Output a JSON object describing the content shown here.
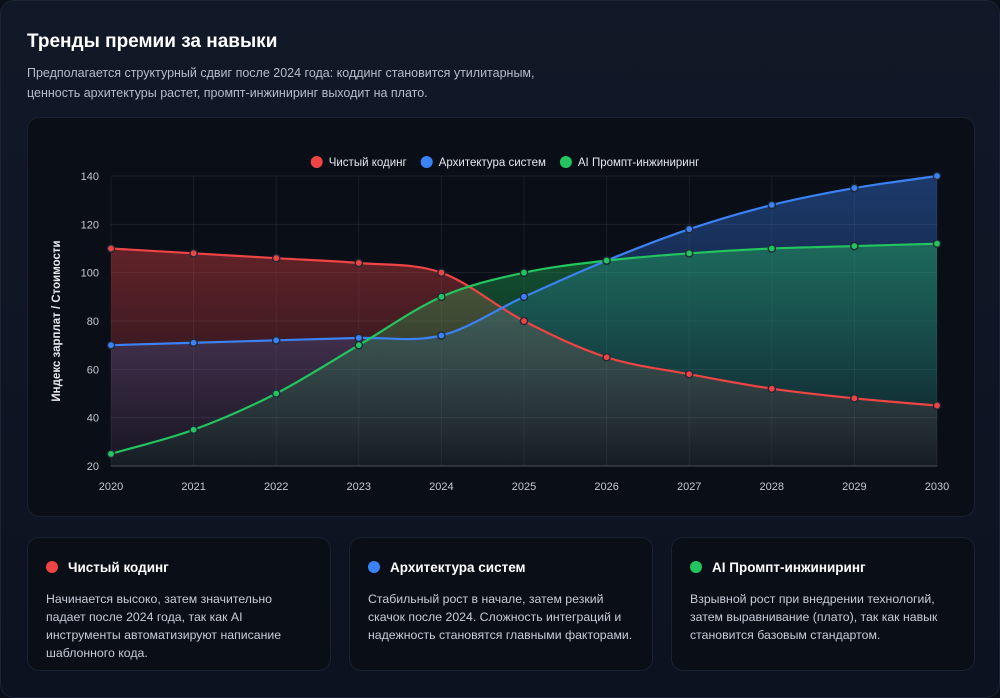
{
  "header": {
    "title": "Тренды премии за навыки",
    "subtitle": "Предполагается структурный сдвиг после 2024 года: коддинг становится утилитарным, ценность архитектуры растет, промпт-инжиниринг выходит на плато."
  },
  "chart_data": {
    "type": "line",
    "title": "",
    "xlabel": "",
    "ylabel": "Индекс зарплат / Стоимости",
    "x": [
      "2020",
      "2021",
      "2022",
      "2023",
      "2024",
      "2025",
      "2026",
      "2027",
      "2028",
      "2029",
      "2030"
    ],
    "ylim": [
      20,
      140
    ],
    "yticks": [
      20,
      40,
      60,
      80,
      100,
      120,
      140
    ],
    "grid": true,
    "legend_position": "top-center",
    "series": [
      {
        "name": "Чистый кодинг",
        "color": "#ef4444",
        "values": [
          110,
          108,
          106,
          104,
          100,
          80,
          65,
          58,
          52,
          48,
          45
        ]
      },
      {
        "name": "Архитектура систем",
        "color": "#3b82f6",
        "values": [
          70,
          71,
          72,
          73,
          74,
          90,
          105,
          118,
          128,
          135,
          140
        ]
      },
      {
        "name": "AI Промпт-инжиниринг",
        "color": "#22c55e",
        "values": [
          25,
          35,
          50,
          70,
          90,
          100,
          105,
          108,
          110,
          111,
          112
        ]
      }
    ]
  },
  "cards": [
    {
      "title": "Чистый кодинг",
      "color": "#ef4444",
      "text": "Начинается высоко, затем значительно падает после 2024 года, так как AI инструменты автоматизируют написание шаблонного кода."
    },
    {
      "title": "Архитектура систем",
      "color": "#3b82f6",
      "text": "Стабильный рост в начале, затем резкий скачок после 2024. Сложность интеграций и надежность становятся главными факторами."
    },
    {
      "title": "AI Промпт-инжиниринг",
      "color": "#22c55e",
      "text": "Взрывной рост при внедрении технологий, затем выравнивание (плато), так как навык становится базовым стандартом."
    }
  ]
}
